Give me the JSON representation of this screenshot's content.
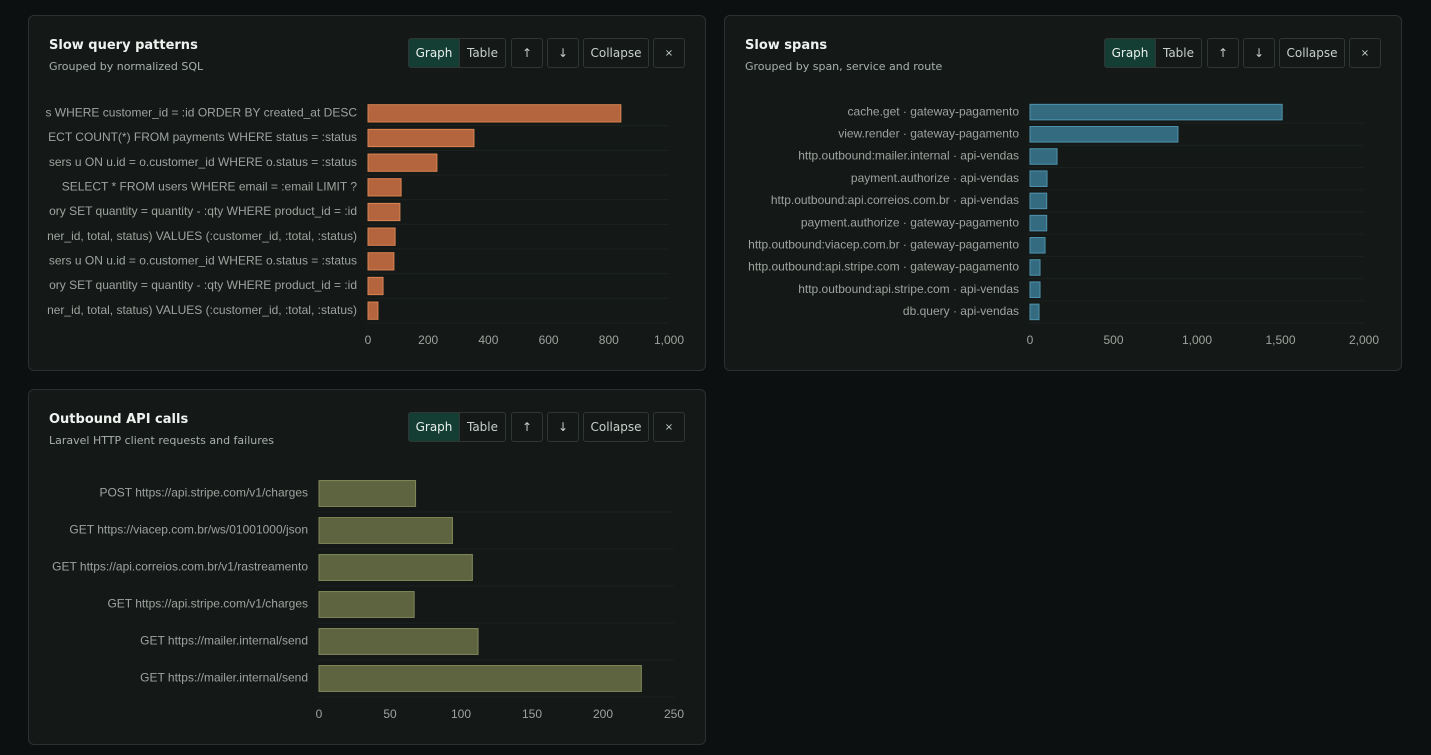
{
  "panels": [
    {
      "title": "Slow query patterns",
      "subtitle": "Grouped by normalized SQL",
      "buttons": [
        "Graph",
        "Table",
        "↑",
        "↓",
        "Collapse",
        "×"
      ],
      "chart": {
        "type": "bar",
        "orientation": "horizontal",
        "color": "#b5653d",
        "border": "#d98453",
        "categories": [
          "s WHERE customer_id = :id ORDER BY created_at DESC",
          "ECT COUNT(*) FROM payments WHERE status = :status",
          "sers u ON u.id = o.customer_id WHERE o.status = :status",
          "SELECT * FROM users WHERE email = :email LIMIT ?",
          "ory SET quantity = quantity - :qty WHERE product_id = :id",
          "ner_id, total, status) VALUES (:customer_id, :total, :status)",
          "sers u ON u.id = o.customer_id WHERE o.status = :status",
          "ory SET quantity = quantity - :qty WHERE product_id = :id",
          "ner_id, total, status) VALUES (:customer_id, :total, :status)"
        ],
        "values": [
          840,
          352,
          229,
          110,
          106,
          90,
          86,
          50,
          33
        ],
        "xlim": [
          0,
          1000
        ],
        "xticks": [
          0,
          200,
          400,
          600,
          800,
          {
            "value": 1000,
            "label": "1,000"
          }
        ]
      }
    },
    {
      "title": "Slow spans",
      "subtitle": "Grouped by span, service and route",
      "buttons": [
        "Graph",
        "Table",
        "↑",
        "↓",
        "Collapse",
        "×"
      ],
      "chart": {
        "type": "bar",
        "orientation": "horizontal",
        "color": "#356b80",
        "border": "#4f93ad",
        "categories": [
          "cache.get · gateway-pagamento",
          "view.render · gateway-pagamento",
          "http.outbound:mailer.internal · api-vendas",
          "payment.authorize · api-vendas",
          "http.outbound:api.correios.com.br · api-vendas",
          "payment.authorize · gateway-pagamento",
          "http.outbound:viacep.com.br · gateway-pagamento",
          "http.outbound:api.stripe.com · gateway-pagamento",
          "http.outbound:api.stripe.com · api-vendas",
          "db.query · api-vendas"
        ],
        "values": [
          1510,
          886,
          162,
          102,
          100,
          100,
          90,
          60,
          60,
          54
        ],
        "xlim": [
          0,
          2000
        ],
        "xticks": [
          0,
          500,
          {
            "value": 1000,
            "label": "1,000"
          },
          {
            "value": 1500,
            "label": "1,500"
          },
          {
            "value": 2000,
            "label": "2,000"
          }
        ]
      }
    },
    {
      "title": "Outbound API calls",
      "subtitle": "Laravel HTTP client requests and failures",
      "buttons": [
        "Graph",
        "Table",
        "↑",
        "↓",
        "Collapse",
        "×"
      ],
      "chart": {
        "type": "bar",
        "orientation": "horizontal",
        "color": "#5f6440",
        "border": "#80875a",
        "categories": [
          "POST https://api.stripe.com/v1/charges",
          "GET https://viacep.com.br/ws/01001000/json",
          "GET https://api.correios.com.br/v1/rastreamento",
          "GET https://api.stripe.com/v1/charges",
          "GET https://mailer.internal/send",
          "GET https://mailer.internal/send"
        ],
        "values": [
          68,
          94,
          108,
          67,
          112,
          227
        ],
        "xlim": [
          0,
          250
        ],
        "xticks": [
          0,
          50,
          100,
          150,
          200,
          250
        ]
      }
    }
  ]
}
